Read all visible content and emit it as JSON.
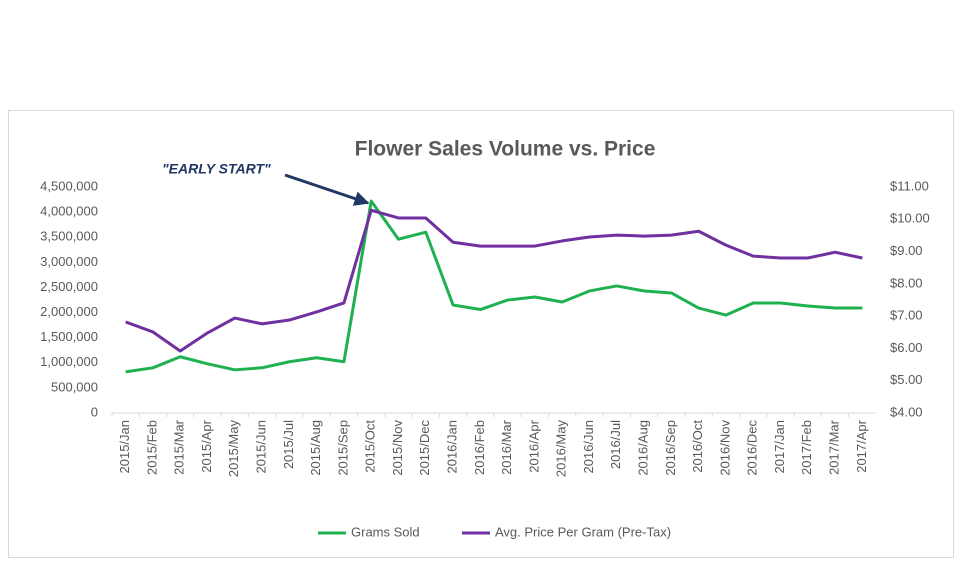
{
  "chart_data": {
    "type": "line",
    "title": "Flower Sales Volume vs. Price",
    "annotations": [
      {
        "text": "\"EARLY START\""
      }
    ],
    "categories": [
      "2015/Jan",
      "2015/Feb",
      "2015/Mar",
      "2015/Apr",
      "2015/May",
      "2015/Jun",
      "2015/Jul",
      "2015/Aug",
      "2015/Sep",
      "2015/Oct",
      "2015/Nov",
      "2015/Dec",
      "2016/Jan",
      "2016/Feb",
      "2016/Mar",
      "2016/Apr",
      "2016/May",
      "2016/Jun",
      "2016/Jul",
      "2016/Aug",
      "2016/Sep",
      "2016/Oct",
      "2016/Nov",
      "2016/Dec",
      "2017/Jan",
      "2017/Feb",
      "2017/Mar",
      "2017/Apr"
    ],
    "series": [
      {
        "name": "Grams Sold",
        "color": "#1fb04f",
        "values": [
          820000,
          900000,
          1120000,
          980000,
          860000,
          900000,
          1020000,
          1100000,
          1020000,
          4220000,
          3460000,
          3600000,
          2150000,
          2060000,
          2250000,
          2310000,
          2210000,
          2430000,
          2530000,
          2430000,
          2390000,
          2090000,
          1950000,
          2190000,
          2190000,
          2130000,
          2090000,
          2090000
        ]
      },
      {
        "name": "Avg. Price Per Gram (Pre-Tax)",
        "color": "#7030a0",
        "axis": "y2",
        "values": [
          6.82,
          6.51,
          5.92,
          6.48,
          6.94,
          6.76,
          6.88,
          7.13,
          7.41,
          10.28,
          10.04,
          10.04,
          9.29,
          9.17,
          9.17,
          9.17,
          9.33,
          9.45,
          9.51,
          9.48,
          9.51,
          9.63,
          9.2,
          8.86,
          8.8,
          8.8,
          8.98,
          8.8
        ]
      }
    ],
    "ylim": [
      0,
      4500000
    ],
    "yticks": [
      0,
      {
        "value": 500000,
        "label": "500,000"
      },
      {
        "value": 1000000,
        "label": "1,000,000"
      },
      {
        "value": 1500000,
        "label": "1,500,000"
      },
      {
        "value": 2000000,
        "label": "2,000,000"
      },
      {
        "value": 2500000,
        "label": "2,500,000"
      },
      {
        "value": 3000000,
        "label": "3,000,000"
      },
      {
        "value": 3500000,
        "label": "3,500,000"
      },
      {
        "value": 4000000,
        "label": "4,000,000"
      },
      {
        "value": 4500000,
        "label": "4,500,000"
      }
    ],
    "y2lim": [
      4,
      11
    ],
    "y2ticks": [
      {
        "value": 4,
        "label": "$4.00"
      },
      {
        "value": 5,
        "label": "$5.00"
      },
      {
        "value": 6,
        "label": "$6.00"
      },
      {
        "value": 7,
        "label": "$7.00"
      },
      {
        "value": 8,
        "label": "$8.00"
      },
      {
        "value": 9,
        "label": "$9.00"
      },
      {
        "value": 10,
        "label": "$10.00"
      },
      {
        "value": 11,
        "label": "$11.00"
      }
    ],
    "grid": false,
    "legend": "bottom"
  }
}
